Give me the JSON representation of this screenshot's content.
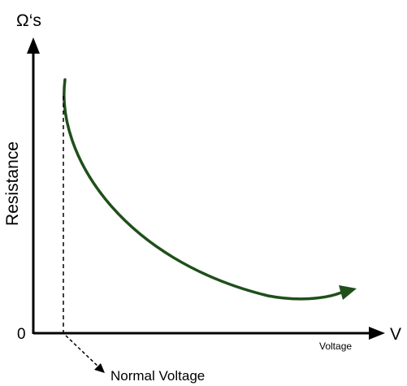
{
  "diagram": {
    "y_unit": "Ω‘s",
    "y_label": "Resistance",
    "origin": "0",
    "x_unit": "V",
    "x_label": "Voltage",
    "pointer_label": "Normal Voltage",
    "colors": {
      "axes": "#000000",
      "curve": "#1f4f1a",
      "text": "#000000"
    }
  }
}
